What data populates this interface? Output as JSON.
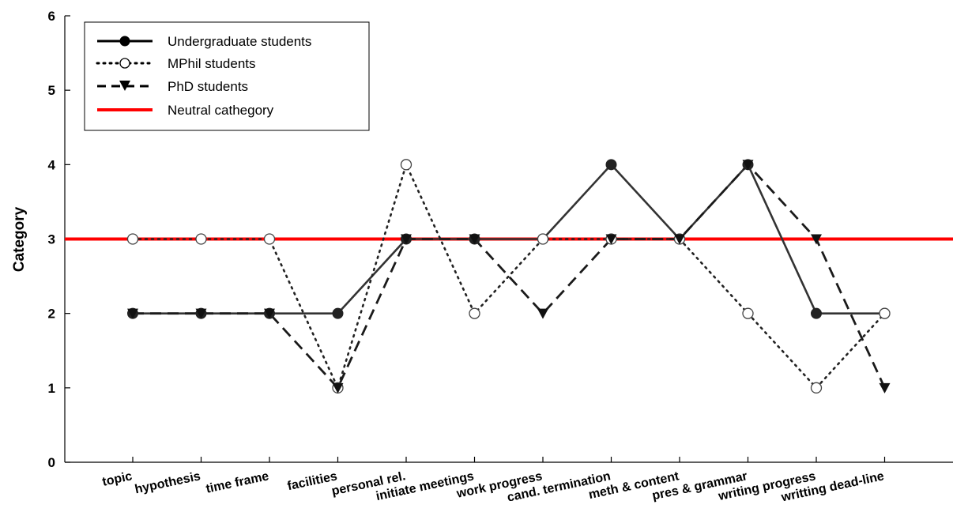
{
  "chart_data": {
    "type": "line",
    "ylabel": "Category",
    "xlabel": "",
    "ylim": [
      0,
      6
    ],
    "yticks": [
      0,
      1,
      2,
      3,
      4,
      5,
      6
    ],
    "categories": [
      "topic",
      "hypothesis",
      "time frame",
      "facilities",
      "personal rel.",
      "initiate meetings",
      "work progress",
      "cand. termination",
      "meth & content",
      "pres & grammar",
      "writing progress",
      "writting dead-line"
    ],
    "series": [
      {
        "name": "Undergraduate students",
        "values": [
          2,
          2,
          2,
          2,
          3,
          3,
          3,
          4,
          3,
          4,
          2,
          2
        ],
        "style": "solid",
        "marker": "filled-circle",
        "color": "#000000"
      },
      {
        "name": "MPhil students",
        "values": [
          3,
          3,
          3,
          1,
          4,
          2,
          3,
          3,
          3,
          2,
          1,
          2
        ],
        "style": "dotted",
        "marker": "open-circle",
        "color": "#000000"
      },
      {
        "name": "PhD students",
        "values": [
          2,
          2,
          2,
          1,
          3,
          3,
          2,
          3,
          3,
          4,
          3,
          1
        ],
        "style": "dashed",
        "marker": "filled-triangle-down",
        "color": "#000000"
      }
    ],
    "reference_line": {
      "name": "Neutral cathegory",
      "value": 3,
      "color": "#ff0000"
    },
    "legend_position": "top-left",
    "grid": false
  }
}
